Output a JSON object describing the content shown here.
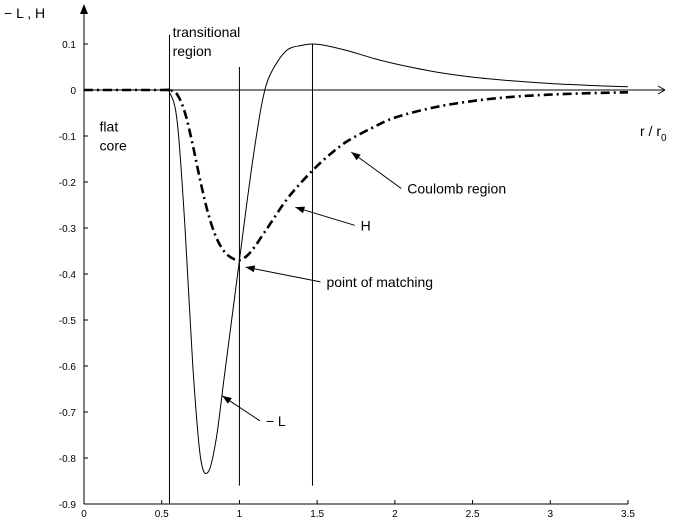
{
  "chart_data": {
    "type": "line",
    "ylabel": "− L , H",
    "xlabel_main": "r / r",
    "xlabel_sub": "0",
    "xlim": [
      0,
      3.5
    ],
    "ylim": [
      -0.9,
      0.1
    ],
    "x_ticks": [
      {
        "value": 0,
        "label": "0"
      },
      {
        "value": 0.5,
        "label": "0.5"
      },
      {
        "value": 1,
        "label": "1"
      },
      {
        "value": 1.5,
        "label": "1.5"
      },
      {
        "value": 2,
        "label": "2"
      },
      {
        "value": 2.5,
        "label": "2.5"
      },
      {
        "value": 3,
        "label": "3"
      },
      {
        "value": 3.5,
        "label": "3.5"
      }
    ],
    "y_ticks": [
      {
        "value": 0.1,
        "label": "0.1"
      },
      {
        "value": 0,
        "label": "0"
      },
      {
        "value": -0.1,
        "label": "-0.1"
      },
      {
        "value": -0.2,
        "label": "-0.2"
      },
      {
        "value": -0.3,
        "label": "-0.3"
      },
      {
        "value": -0.4,
        "label": "-0.4"
      },
      {
        "value": -0.5,
        "label": "-0.5"
      },
      {
        "value": -0.6,
        "label": "-0.6"
      },
      {
        "value": -0.7,
        "label": "-0.7"
      },
      {
        "value": -0.8,
        "label": "-0.8"
      },
      {
        "value": -0.9,
        "label": "-0.9"
      }
    ],
    "series": [
      {
        "name": "− L",
        "style": "solid",
        "x": [
          0,
          0.5,
          0.55,
          0.6,
          0.65,
          0.7,
          0.75,
          0.8,
          0.85,
          0.9,
          0.95,
          1.0,
          1.05,
          1.1,
          1.15,
          1.2,
          1.3,
          1.4,
          1.47,
          1.55,
          1.7,
          1.85,
          2.0,
          2.25,
          2.5,
          2.75,
          3.0,
          3.25,
          3.5
        ],
        "y": [
          0,
          0,
          -0.005,
          -0.07,
          -0.3,
          -0.6,
          -0.8,
          -0.83,
          -0.76,
          -0.63,
          -0.5,
          -0.37,
          -0.24,
          -0.12,
          -0.02,
          0.035,
          0.085,
          0.097,
          0.1,
          0.097,
          0.085,
          0.07,
          0.057,
          0.04,
          0.028,
          0.02,
          0.014,
          0.01,
          0.007
        ]
      },
      {
        "name": "H",
        "style": "dash-dot",
        "x": [
          0,
          0.5,
          0.55,
          0.6,
          0.65,
          0.7,
          0.75,
          0.8,
          0.85,
          0.9,
          0.95,
          1.0,
          1.05,
          1.1,
          1.15,
          1.2,
          1.3,
          1.4,
          1.5,
          1.6,
          1.7,
          1.85,
          2.0,
          2.25,
          2.5,
          2.75,
          3.0,
          3.25,
          3.5
        ],
        "y": [
          0,
          0,
          0,
          -0.01,
          -0.05,
          -0.12,
          -0.2,
          -0.27,
          -0.32,
          -0.35,
          -0.365,
          -0.37,
          -0.36,
          -0.34,
          -0.315,
          -0.29,
          -0.24,
          -0.2,
          -0.165,
          -0.135,
          -0.11,
          -0.083,
          -0.06,
          -0.038,
          -0.024,
          -0.015,
          -0.01,
          -0.007,
          -0.005
        ]
      }
    ],
    "vertical_lines": [
      {
        "x": 0.55,
        "y_top": 0.12,
        "y_bottom": -0.9
      },
      {
        "x": 1.0,
        "y_top": 0.05,
        "y_bottom": -0.86
      },
      {
        "x": 1.47,
        "y_top": 0.1,
        "y_bottom": -0.86
      }
    ],
    "annotations": [
      {
        "lines": [
          "transitional",
          "region"
        ],
        "anchor": {
          "x": 0.57,
          "y": 0.115
        }
      },
      {
        "lines": [
          "flat",
          "core"
        ],
        "anchor": {
          "x": 0.1,
          "y": -0.09
        }
      },
      {
        "lines": [
          "Coulomb region"
        ],
        "anchor": {
          "x": 2.08,
          "y": -0.225
        },
        "arrow_to": {
          "x": 1.72,
          "y": -0.135
        }
      },
      {
        "lines": [
          "H"
        ],
        "anchor": {
          "x": 1.78,
          "y": -0.305
        },
        "arrow_to": {
          "x": 1.36,
          "y": -0.255
        }
      },
      {
        "lines": [
          "point of matching"
        ],
        "anchor": {
          "x": 1.56,
          "y": -0.428
        },
        "arrow_to": {
          "x": 1.04,
          "y": -0.385
        }
      },
      {
        "lines": [
          "− L"
        ],
        "anchor": {
          "x": 1.17,
          "y": -0.73
        },
        "arrow_to": {
          "x": 0.89,
          "y": -0.665
        }
      }
    ],
    "grid": false,
    "legend": "none"
  }
}
